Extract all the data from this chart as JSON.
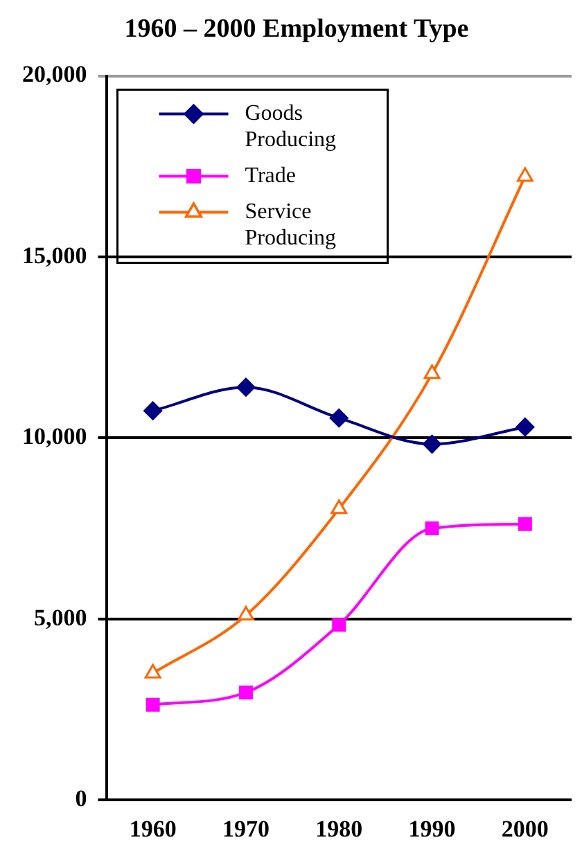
{
  "chart_data": {
    "type": "line",
    "title": "1960 – 2000 Employment Type",
    "categories": [
      "1960",
      "1970",
      "1980",
      "1990",
      "2000"
    ],
    "series": [
      {
        "name": "Goods Producing",
        "color": "#000080",
        "marker": "diamond",
        "values": [
          10750,
          11400,
          10550,
          9830,
          10300
        ]
      },
      {
        "name": "Trade",
        "color": "#ff00ff",
        "marker": "square",
        "values": [
          2630,
          2970,
          4840,
          7500,
          7620
        ]
      },
      {
        "name": "Service Producing",
        "color": "#ff6600",
        "marker": "triangle",
        "values": [
          3500,
          5100,
          8040,
          11770,
          17220
        ]
      }
    ],
    "ylim": [
      0,
      20000
    ],
    "yticks": [
      0,
      {
        "value": 5000,
        "label": "5,000"
      },
      {
        "value": 10000,
        "label": "10,000"
      },
      {
        "value": 15000,
        "label": "15,000"
      },
      {
        "value": 20000,
        "label": "20,000"
      }
    ],
    "grid": "y",
    "legend": "top left"
  }
}
